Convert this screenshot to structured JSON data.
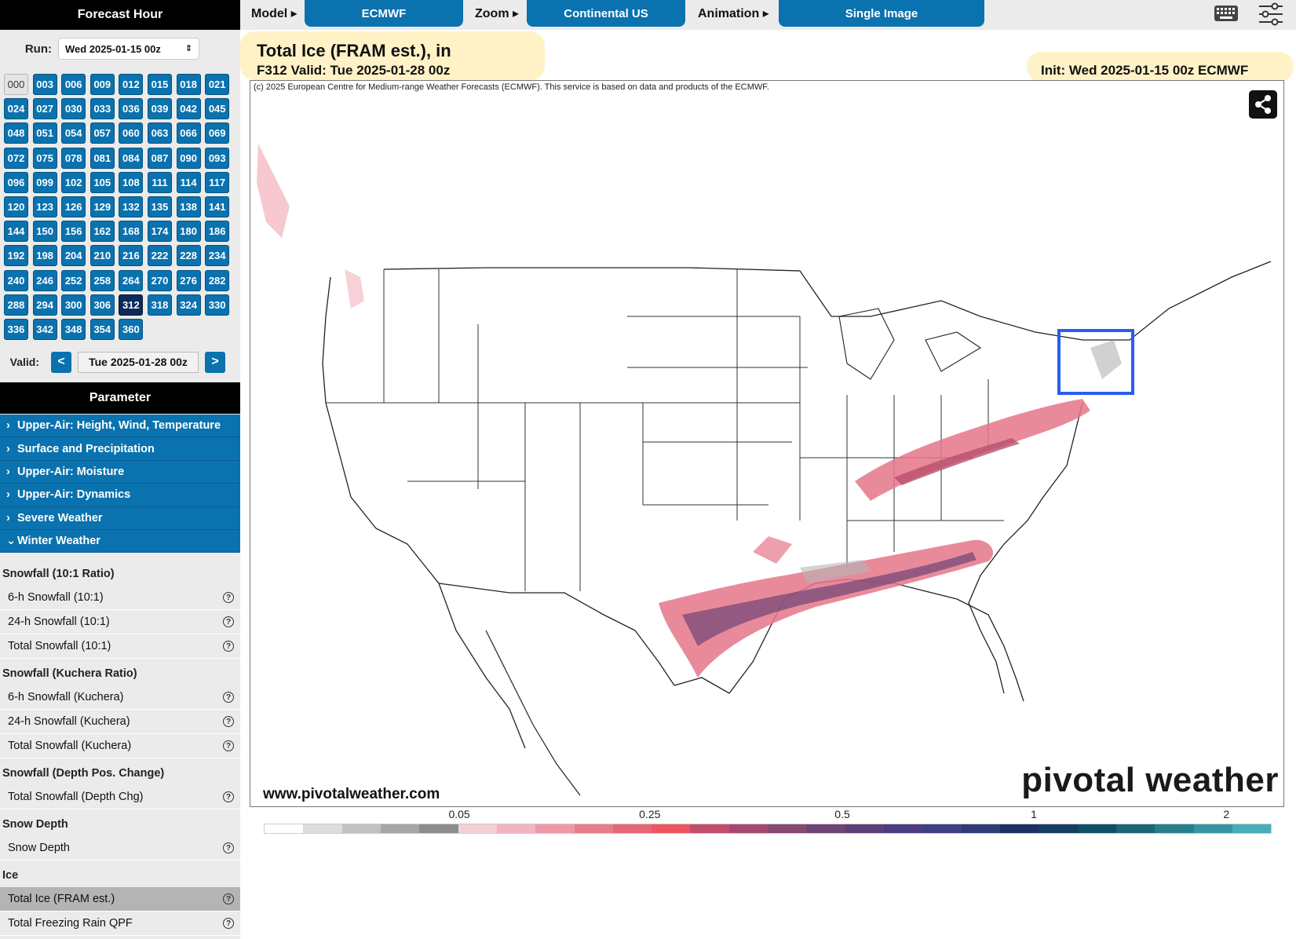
{
  "sidebar": {
    "forecast_hour_title": "Forecast Hour",
    "run_label": "Run:",
    "run_value": "Wed 2025-01-15 00z",
    "hours": [
      "000",
      "003",
      "006",
      "009",
      "012",
      "015",
      "018",
      "021",
      "024",
      "027",
      "030",
      "033",
      "036",
      "039",
      "042",
      "045",
      "048",
      "051",
      "054",
      "057",
      "060",
      "063",
      "066",
      "069",
      "072",
      "075",
      "078",
      "081",
      "084",
      "087",
      "090",
      "093",
      "096",
      "099",
      "102",
      "105",
      "108",
      "111",
      "114",
      "117",
      "120",
      "123",
      "126",
      "129",
      "132",
      "135",
      "138",
      "141",
      "144",
      "150",
      "156",
      "162",
      "168",
      "174",
      "180",
      "186",
      "192",
      "198",
      "204",
      "210",
      "216",
      "222",
      "228",
      "234",
      "240",
      "246",
      "252",
      "258",
      "264",
      "270",
      "276",
      "282",
      "288",
      "294",
      "300",
      "306",
      "312",
      "318",
      "324",
      "330",
      "336",
      "342",
      "348",
      "354",
      "360"
    ],
    "active_hour": "312",
    "disabled_hour": "000",
    "valid_label": "Valid:",
    "prev_label": "<",
    "next_label": ">",
    "valid_value": "Tue 2025-01-28 00z",
    "parameter_title": "Parameter",
    "categories": [
      {
        "label": "Upper-Air: Height, Wind, Temperature",
        "expanded": false
      },
      {
        "label": "Surface and Precipitation",
        "expanded": false
      },
      {
        "label": "Upper-Air: Moisture",
        "expanded": false
      },
      {
        "label": "Upper-Air: Dynamics",
        "expanded": false
      },
      {
        "label": "Severe Weather",
        "expanded": false
      },
      {
        "label": "Winter Weather",
        "expanded": true
      }
    ],
    "groups": [
      {
        "heading": "Snowfall (10:1 Ratio)",
        "items": [
          "6-h Snowfall (10:1)",
          "24-h Snowfall (10:1)",
          "Total Snowfall (10:1)"
        ]
      },
      {
        "heading": "Snowfall (Kuchera Ratio)",
        "items": [
          "6-h Snowfall (Kuchera)",
          "24-h Snowfall (Kuchera)",
          "Total Snowfall (Kuchera)"
        ]
      },
      {
        "heading": "Snowfall (Depth Pos. Change)",
        "items": [
          "Total Snowfall (Depth Chg)"
        ]
      },
      {
        "heading": "Snow Depth",
        "items": [
          "Snow Depth"
        ]
      },
      {
        "heading": "Ice",
        "items": [
          "Total Ice (FRAM est.)",
          "Total Freezing Rain QPF"
        ]
      }
    ],
    "selected_item": "Total Ice (FRAM est.)"
  },
  "topbar": {
    "model_label": "Model ▸",
    "model_value": "ECMWF",
    "zoom_label": "Zoom ▸",
    "zoom_value": "Continental US",
    "animation_label": "Animation ▸",
    "animation_value": "Single Image"
  },
  "map": {
    "title": "Total Ice (FRAM est.), in",
    "valid_line": "F312 Valid: Tue 2025-01-28 00z",
    "init_line": "Init: Wed 2025-01-15 00z ECMWF",
    "copyright": "(c) 2025 European Centre for Medium-range Weather Forecasts (ECMWF). This service is based on data and products of the ECMWF.",
    "site_url": "www.pivotalweather.com",
    "brand": "pivotal weather",
    "highlight_color": "#2a5cf5"
  },
  "legend": {
    "labels": [
      {
        "text": "0.05",
        "pos": 0.194
      },
      {
        "text": "0.25",
        "pos": 0.383
      },
      {
        "text": "0.5",
        "pos": 0.574
      },
      {
        "text": "1",
        "pos": 0.764
      },
      {
        "text": "2",
        "pos": 0.955
      }
    ],
    "colors": [
      "#ffffff",
      "#dcdcdc",
      "#c2c2c2",
      "#a6a6a6",
      "#8c8c8c",
      "#f5cfd6",
      "#f2b5c0",
      "#ee98a6",
      "#ea7d8a",
      "#e66774",
      "#ef5560",
      "#c24d6a",
      "#a34a6e",
      "#874872",
      "#6f4576",
      "#5b4079",
      "#4a3c80",
      "#3d3f83",
      "#2e3b77",
      "#1b3062",
      "#143d62",
      "#0e4f66",
      "#1c6577",
      "#287f8c",
      "#3496a2",
      "#48adba"
    ]
  }
}
